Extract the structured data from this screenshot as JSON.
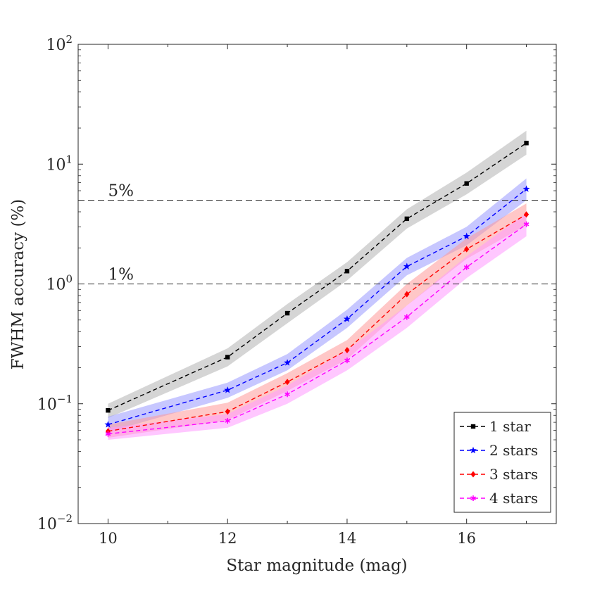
{
  "chart_data": {
    "type": "line",
    "title": "",
    "xlabel": "Star magnitude (mag)",
    "ylabel": "FWHM accuracy (%)",
    "xlim": [
      9.5,
      17.5
    ],
    "ylim": [
      0.01,
      100
    ],
    "yscale": "log",
    "x_ticks": [
      10,
      12,
      14,
      16
    ],
    "x_tick_labels": [
      "10",
      "12",
      "14",
      "16"
    ],
    "y_ticks": [
      0.01,
      0.1,
      1,
      10,
      100
    ],
    "y_tick_labels": [
      {
        "base": "10",
        "exp": "−2"
      },
      {
        "base": "10",
        "exp": "−1"
      },
      {
        "base": "10",
        "exp": "0"
      },
      {
        "base": "10",
        "exp": "1"
      },
      {
        "base": "10",
        "exp": "2"
      }
    ],
    "x": [
      10,
      12,
      13,
      14,
      15,
      16,
      17
    ],
    "series": [
      {
        "name": "1 star",
        "color": "#000000",
        "band_color": "#b3b3b3",
        "marker": "square",
        "values": [
          0.088,
          0.245,
          0.57,
          1.28,
          3.5,
          6.9,
          15.0
        ],
        "lower": [
          0.076,
          0.205,
          0.47,
          1.07,
          2.9,
          5.6,
          12.0
        ],
        "upper": [
          0.1,
          0.29,
          0.68,
          1.52,
          4.2,
          8.5,
          19.0
        ]
      },
      {
        "name": "2 stars",
        "color": "#0000ff",
        "band_color": "#9999ff",
        "marker": "star",
        "values": [
          0.067,
          0.13,
          0.22,
          0.51,
          1.4,
          2.5,
          6.2
        ],
        "lower": [
          0.058,
          0.112,
          0.19,
          0.43,
          1.18,
          2.1,
          5.0
        ],
        "upper": [
          0.078,
          0.15,
          0.26,
          0.61,
          1.65,
          3.0,
          7.6
        ]
      },
      {
        "name": "3 stars",
        "color": "#ff0000",
        "band_color": "#ff9999",
        "marker": "diamond",
        "values": [
          0.059,
          0.086,
          0.152,
          0.28,
          0.82,
          1.95,
          3.8
        ],
        "lower": [
          0.052,
          0.073,
          0.128,
          0.235,
          0.66,
          1.62,
          3.1
        ],
        "upper": [
          0.067,
          0.102,
          0.18,
          0.34,
          1.0,
          2.4,
          4.7
        ]
      },
      {
        "name": "4 stars",
        "color": "#ff00ff",
        "band_color": "#ff99ff",
        "marker": "asterisk",
        "values": [
          0.056,
          0.072,
          0.12,
          0.23,
          0.53,
          1.38,
          3.15
        ],
        "lower": [
          0.05,
          0.063,
          0.1,
          0.19,
          0.43,
          1.12,
          2.5
        ],
        "upper": [
          0.063,
          0.082,
          0.142,
          0.28,
          0.66,
          1.7,
          3.9
        ]
      }
    ],
    "reference_lines": [
      {
        "value": 5,
        "label": "5%"
      },
      {
        "value": 1,
        "label": "1%"
      }
    ],
    "legend": {
      "position": "bottom-right",
      "entries": [
        "1 star",
        "2 stars",
        "3 stars",
        "4 stars"
      ]
    },
    "grid": false
  }
}
